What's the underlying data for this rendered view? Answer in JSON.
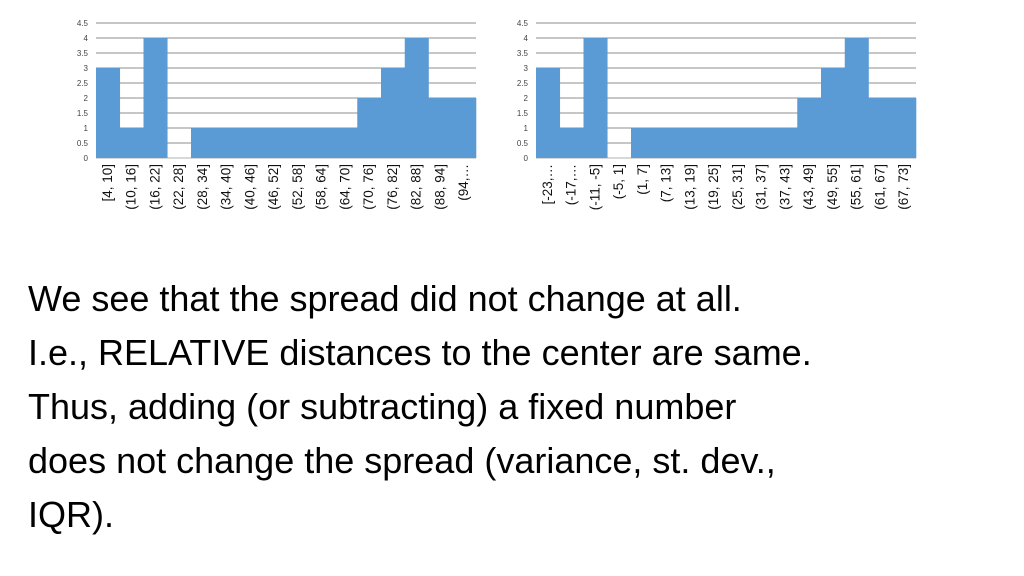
{
  "chart_data": [
    {
      "type": "bar",
      "categories": [
        "[4, 10]",
        "(10, 16]",
        "(16, 22]",
        "(22, 28]",
        "(28, 34]",
        "(34, 40]",
        "(40, 46]",
        "(46, 52]",
        "(52, 58]",
        "(58, 64]",
        "(64, 70]",
        "(70, 76]",
        "(76, 82]",
        "(82, 88]",
        "(88, 94]",
        "(94,…"
      ],
      "values": [
        3,
        1,
        4,
        0,
        1,
        1,
        1,
        1,
        1,
        1,
        1,
        2,
        3,
        4,
        2,
        2
      ],
      "yticks": [
        "0",
        "0.5",
        "1",
        "1.5",
        "2",
        "2.5",
        "3",
        "3.5",
        "4",
        "4.5"
      ],
      "ylim": [
        0,
        4.5
      ],
      "grid": true,
      "legend": "none",
      "color": "#5b9bd5",
      "title": "",
      "xlabel": "",
      "ylabel": ""
    },
    {
      "type": "bar",
      "categories": [
        "[-23,…",
        "(-17,…",
        "(-11, -5]",
        "(-5, 1]",
        "(1, 7]",
        "(7, 13]",
        "(13, 19]",
        "(19, 25]",
        "(25, 31]",
        "(31, 37]",
        "(37, 43]",
        "(43, 49]",
        "(49, 55]",
        "(55, 61]",
        "(61, 67]",
        "(67, 73]"
      ],
      "values": [
        3,
        1,
        4,
        0,
        1,
        1,
        1,
        1,
        1,
        1,
        1,
        2,
        3,
        4,
        2,
        2
      ],
      "yticks": [
        "0",
        "0.5",
        "1",
        "1.5",
        "2",
        "2.5",
        "3",
        "3.5",
        "4",
        "4.5"
      ],
      "ylim": [
        0,
        4.5
      ],
      "grid": true,
      "legend": "none",
      "color": "#5b9bd5",
      "title": "",
      "xlabel": "",
      "ylabel": ""
    }
  ],
  "text": {
    "line1": "We see that the spread did not change at all.",
    "line2": "I.e., RELATIVE distances to the center are same.",
    "line3": "Thus, adding (or subtracting) a fixed number",
    "line4": "does not  change the spread (variance, st. dev.,",
    "line5": "IQR)."
  }
}
